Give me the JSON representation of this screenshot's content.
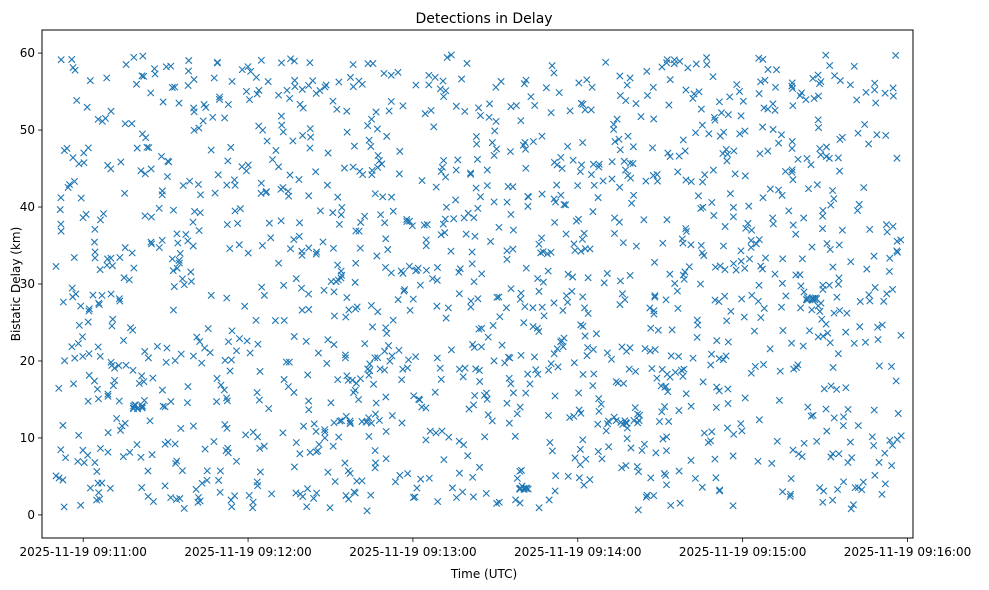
{
  "chart_data": {
    "type": "scatter",
    "title": "Detections in Delay",
    "xlabel": "Time (UTC)",
    "ylabel": "Bistatic Delay (km)",
    "marker": "x",
    "color": "#1f77b4",
    "grid": false,
    "xlim": [
      "2025-11-19 09:10:45",
      "2025-11-19 09:16:02"
    ],
    "ylim": [
      -3,
      63
    ],
    "xticks": [
      "2025-11-19 09:11:00",
      "2025-11-19 09:12:00",
      "2025-11-19 09:13:00",
      "2025-11-19 09:14:00",
      "2025-11-19 09:15:00",
      "2025-11-19 09:16:00"
    ],
    "yticks": [
      0,
      10,
      20,
      30,
      40,
      50,
      60
    ],
    "x_range": [
      "2025-11-19 09:10:50",
      "2025-11-19 09:15:58"
    ],
    "y_range": [
      0.5,
      60
    ],
    "clusters": [
      {
        "x_start": "2025-11-19 09:11:18",
        "x_end": "2025-11-19 09:11:22",
        "y": 14
      },
      {
        "x_start": "2025-11-19 09:12:24",
        "x_end": "2025-11-19 09:12:48",
        "y": 12
      },
      {
        "x_start": "2025-11-19 09:14:07",
        "x_end": "2025-11-19 09:14:23",
        "y": 12
      },
      {
        "x_start": "2025-11-19 09:13:38",
        "x_end": "2025-11-19 09:13:42",
        "y": 3.5
      },
      {
        "x_start": "2025-11-19 09:15:23",
        "x_end": "2025-11-19 09:15:27",
        "y": 28
      }
    ],
    "point_count": 1500
  }
}
